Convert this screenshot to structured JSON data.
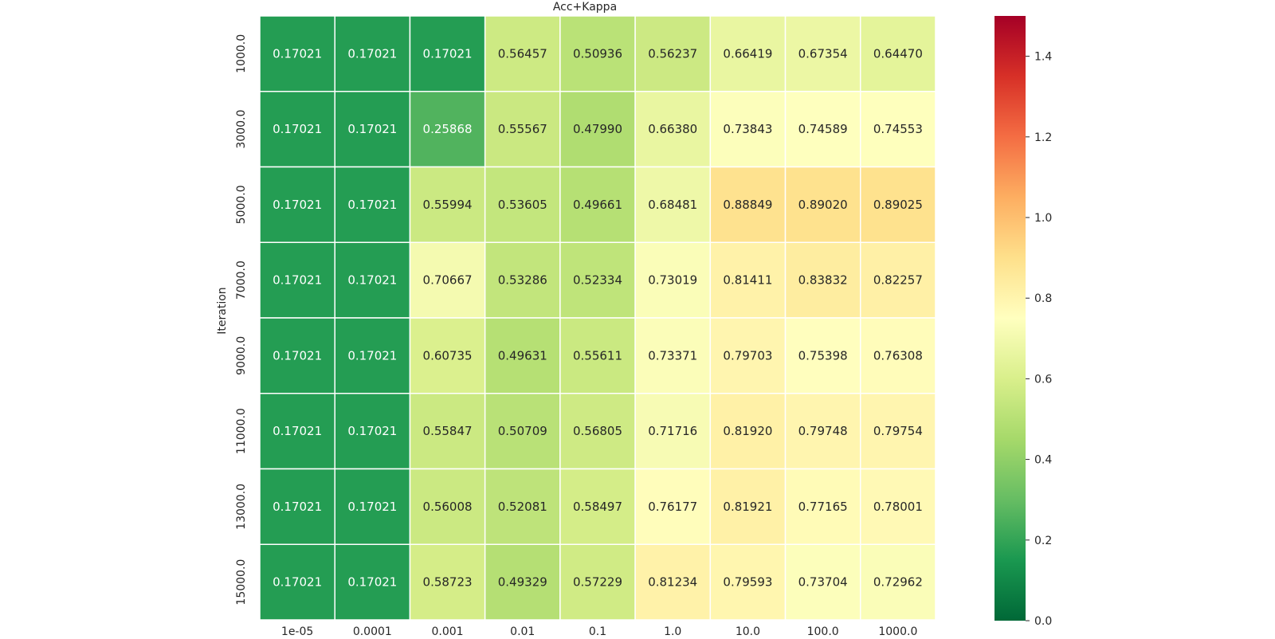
{
  "chart_data": {
    "type": "heatmap",
    "title": "Acc+Kappa",
    "xlabel": "",
    "ylabel": "Iteration",
    "x_categories": [
      "1e-05",
      "0.0001",
      "0.001",
      "0.01",
      "0.1",
      "1.0",
      "10.0",
      "100.0",
      "1000.0"
    ],
    "y_categories": [
      "1000.0",
      "3000.0",
      "5000.0",
      "7000.0",
      "9000.0",
      "11000.0",
      "13000.0",
      "15000.0"
    ],
    "values": [
      [
        0.17021,
        0.17021,
        0.17021,
        0.56457,
        0.50936,
        0.56237,
        0.66419,
        0.67354,
        0.6447
      ],
      [
        0.17021,
        0.17021,
        0.25868,
        0.55567,
        0.4799,
        0.6638,
        0.73843,
        0.74589,
        0.74553
      ],
      [
        0.17021,
        0.17021,
        0.55994,
        0.53605,
        0.49661,
        0.68481,
        0.88849,
        0.8902,
        0.89025
      ],
      [
        0.17021,
        0.17021,
        0.70667,
        0.53286,
        0.52334,
        0.73019,
        0.81411,
        0.83832,
        0.82257
      ],
      [
        0.17021,
        0.17021,
        0.60735,
        0.49631,
        0.55611,
        0.73371,
        0.79703,
        0.75398,
        0.76308
      ],
      [
        0.17021,
        0.17021,
        0.55847,
        0.50709,
        0.56805,
        0.71716,
        0.8192,
        0.79748,
        0.79754
      ],
      [
        0.17021,
        0.17021,
        0.56008,
        0.52081,
        0.58497,
        0.76177,
        0.81921,
        0.77165,
        0.78001
      ],
      [
        0.17021,
        0.17021,
        0.58723,
        0.49329,
        0.57229,
        0.81234,
        0.79593,
        0.73704,
        0.72962
      ]
    ],
    "value_format_decimals": 5,
    "colormap": "RdYlGn_r",
    "vmin": 0.0,
    "vmax": 1.5,
    "colorbar_ticks": [
      "0.0",
      "0.2",
      "0.4",
      "0.6",
      "0.8",
      "1.0",
      "1.2",
      "1.4"
    ],
    "grid": false,
    "legend": "colorbar-right"
  }
}
